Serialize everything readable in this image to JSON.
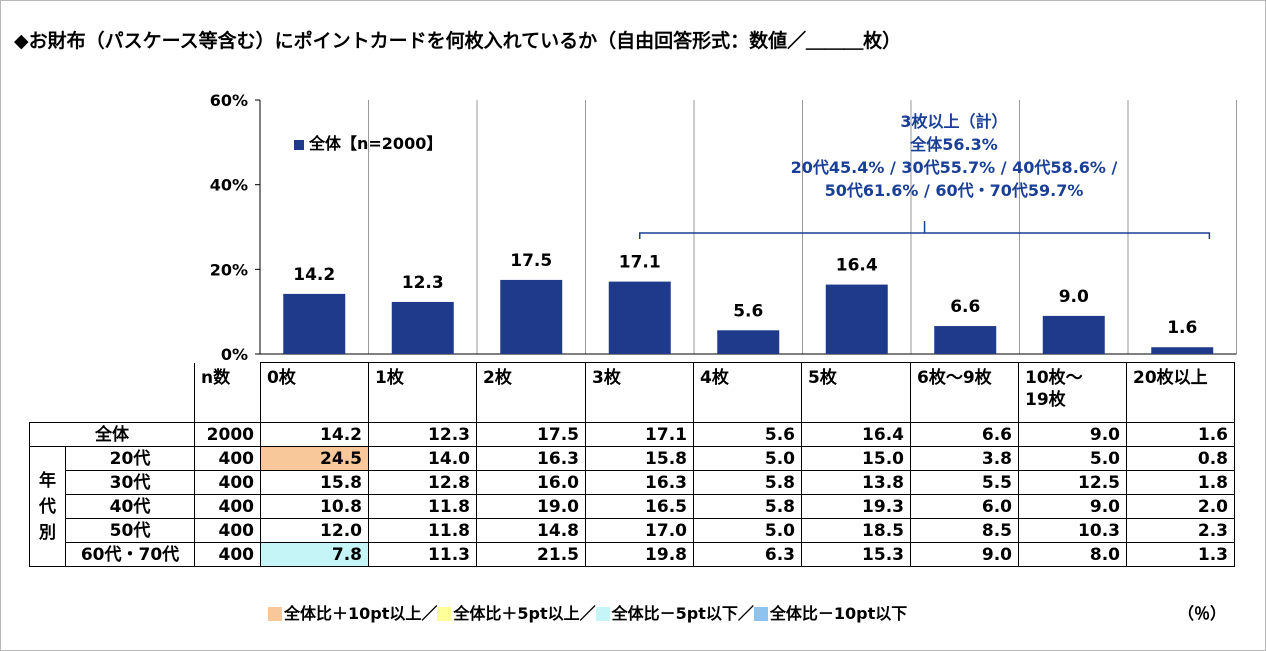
{
  "title": "◆お財布（パスケース等含む）にポイントカードを何枚入れているか（自由回答形式：数値／＿＿＿枚）",
  "chart_data": {
    "type": "bar",
    "categories": [
      "0枚",
      "1枚",
      "2枚",
      "3枚",
      "4枚",
      "5枚",
      "6枚～9枚",
      "10枚～\n19枚",
      "20枚以上"
    ],
    "series": [
      {
        "name": "全体【n=2000】",
        "values": [
          14.2,
          12.3,
          17.5,
          17.1,
          5.6,
          16.4,
          6.6,
          9.0,
          1.6
        ],
        "color": "#1f3a8a"
      }
    ],
    "value_labels": [
      "14.2",
      "12.3",
      "17.5",
      "17.1",
      "5.6",
      "16.4",
      "6.6",
      "9.0",
      "1.6"
    ],
    "ylim": [
      0,
      60
    ],
    "yticks": [
      "0%",
      "20%",
      "40%",
      "60%"
    ],
    "ytick_values": [
      0,
      20,
      40,
      60
    ],
    "annotation": {
      "lines": [
        "3枚以上（計）",
        "全体56.3%",
        "20代45.4% / 30代55.7% / 40代58.6% /",
        "50代61.6% / 60代・70代59.7%"
      ],
      "bracket_from_category": 3,
      "bracket_to_category": 8,
      "color": "#1a3f96"
    }
  },
  "table": {
    "n_header": "n数",
    "group_label": [
      "年",
      "代",
      "別"
    ],
    "rows": [
      {
        "label": "全体",
        "n": "2000",
        "values": [
          "14.2",
          "12.3",
          "17.5",
          "17.1",
          "5.6",
          "16.4",
          "6.6",
          "9.0",
          "1.6"
        ],
        "highlight": [
          null,
          null,
          null,
          null,
          null,
          null,
          null,
          null,
          null
        ]
      },
      {
        "label": "20代",
        "n": "400",
        "values": [
          "24.5",
          "14.0",
          "16.3",
          "15.8",
          "5.0",
          "15.0",
          "3.8",
          "5.0",
          "0.8"
        ],
        "highlight": [
          "orange",
          null,
          null,
          null,
          null,
          null,
          null,
          null,
          null
        ]
      },
      {
        "label": "30代",
        "n": "400",
        "values": [
          "15.8",
          "12.8",
          "16.0",
          "16.3",
          "5.8",
          "13.8",
          "5.5",
          "12.5",
          "1.8"
        ],
        "highlight": [
          null,
          null,
          null,
          null,
          null,
          null,
          null,
          null,
          null
        ]
      },
      {
        "label": "40代",
        "n": "400",
        "values": [
          "10.8",
          "11.8",
          "19.0",
          "16.5",
          "5.8",
          "19.3",
          "6.0",
          "9.0",
          "2.0"
        ],
        "highlight": [
          null,
          null,
          null,
          null,
          null,
          null,
          null,
          null,
          null
        ]
      },
      {
        "label": "50代",
        "n": "400",
        "values": [
          "12.0",
          "11.8",
          "14.8",
          "17.0",
          "5.0",
          "18.5",
          "8.5",
          "10.3",
          "2.3"
        ],
        "highlight": [
          null,
          null,
          null,
          null,
          null,
          null,
          null,
          null,
          null
        ]
      },
      {
        "label": "60代・70代",
        "n": "400",
        "values": [
          "7.8",
          "11.3",
          "21.5",
          "19.8",
          "6.3",
          "15.3",
          "9.0",
          "8.0",
          "1.3"
        ],
        "highlight": [
          "cyan",
          null,
          null,
          null,
          null,
          null,
          null,
          null,
          null
        ]
      }
    ]
  },
  "key": [
    {
      "label": "全体比＋10pt以上／",
      "color": "#f8c79a"
    },
    {
      "label": "全体比＋5pt以上／",
      "color": "#ffff99"
    },
    {
      "label": "全体比－5pt以下／",
      "color": "#c6f5f7"
    },
    {
      "label": "全体比－10pt以下",
      "color": "#8fc3ef"
    }
  ],
  "unit": "（％）"
}
